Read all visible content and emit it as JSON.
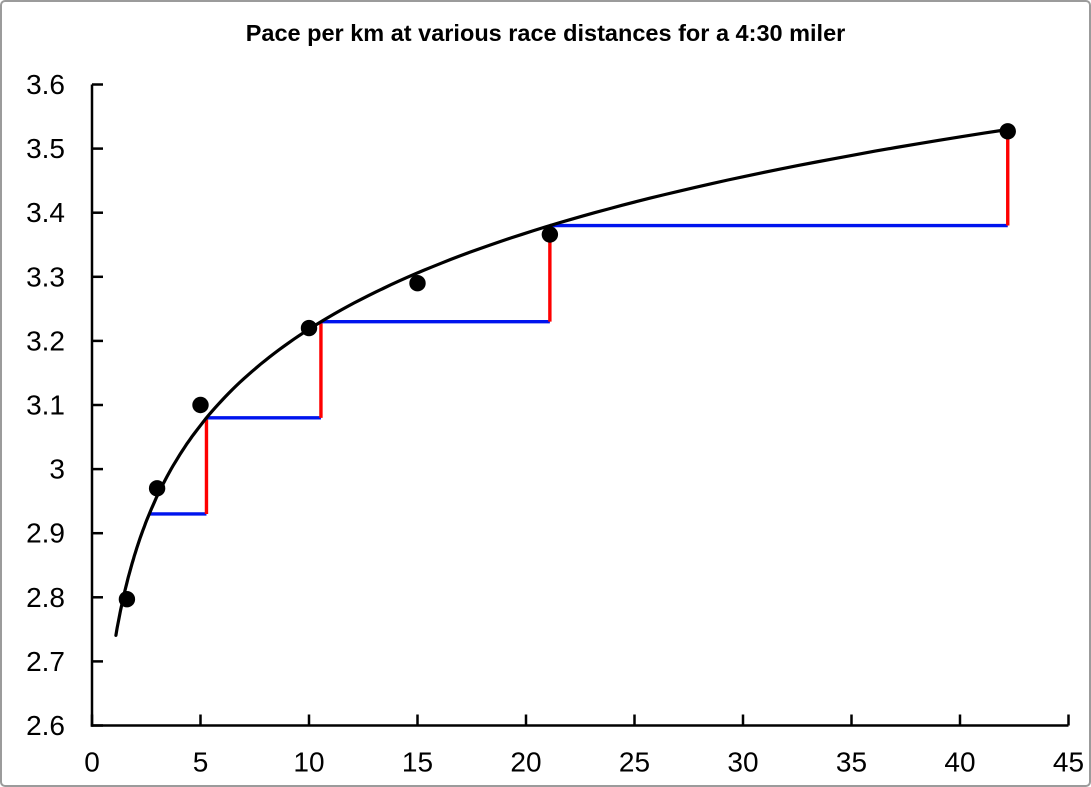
{
  "title": "Pace per km at various race distances for a 4:30 miler",
  "chart_data": {
    "type": "scatter",
    "title": "Pace per km at various race distances for a 4:30 miler",
    "xlabel": "",
    "ylabel": "",
    "xlim": [
      0,
      45
    ],
    "ylim": [
      2.6,
      3.6
    ],
    "grid": false,
    "legend": "none",
    "x_ticks": [
      {
        "v": 0,
        "label": "0"
      },
      {
        "v": 5,
        "label": "5"
      },
      {
        "v": 10,
        "label": "10"
      },
      {
        "v": 15,
        "label": "15"
      },
      {
        "v": 20,
        "label": "20"
      },
      {
        "v": 25,
        "label": "25"
      },
      {
        "v": 30,
        "label": "30"
      },
      {
        "v": 35,
        "label": "35"
      },
      {
        "v": 40,
        "label": "40"
      },
      {
        "v": 45,
        "label": "45"
      }
    ],
    "y_ticks": [
      {
        "v": 2.6,
        "label": "2.6"
      },
      {
        "v": 2.7,
        "label": "2.7"
      },
      {
        "v": 2.8,
        "label": "2.8"
      },
      {
        "v": 2.9,
        "label": "2.9"
      },
      {
        "v": 3.0,
        "label": "3"
      },
      {
        "v": 3.1,
        "label": "3.1"
      },
      {
        "v": 3.2,
        "label": "3.2"
      },
      {
        "v": 3.3,
        "label": "3.3"
      },
      {
        "v": 3.4,
        "label": "3.4"
      },
      {
        "v": 3.5,
        "label": "3.5"
      },
      {
        "v": 3.6,
        "label": "3.6"
      }
    ],
    "points": [
      {
        "x": 1.609,
        "y": 2.797
      },
      {
        "x": 3,
        "y": 2.97
      },
      {
        "x": 5,
        "y": 3.1
      },
      {
        "x": 10,
        "y": 3.22
      },
      {
        "x": 15,
        "y": 3.29
      },
      {
        "x": 21.1,
        "y": 3.366
      },
      {
        "x": 42.2,
        "y": 3.527
      }
    ],
    "trendline": {
      "type": "logarithmic",
      "a": 2.72,
      "b": 0.2164,
      "x_start": 1.1,
      "x_end": 42.2
    },
    "doubling_steps": {
      "distances": [
        2.64,
        5.275,
        10.55,
        21.1,
        42.2
      ],
      "paces": [
        2.93,
        3.08,
        3.23,
        3.38,
        3.53
      ]
    },
    "colors": {
      "curve": "#000000",
      "points": "#000000",
      "axis": "#000000",
      "step_horizontal": "#0014ee",
      "step_vertical": "#fe0000",
      "border": "#9b9b9b"
    }
  }
}
